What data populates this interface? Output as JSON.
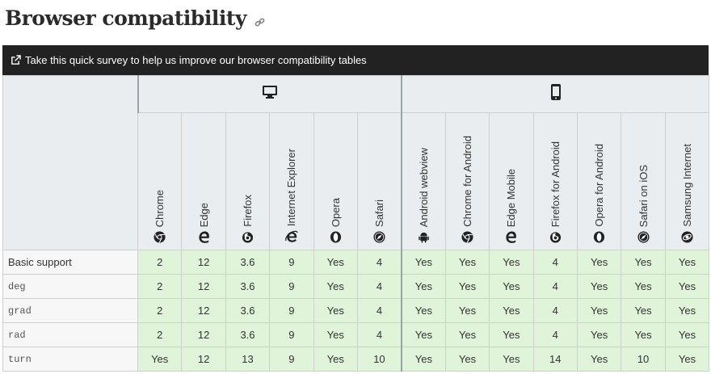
{
  "heading": "Browser compatibility",
  "banner_text": "Take this quick survey to help us improve our browser compatibility tables",
  "platforms": [
    {
      "name": "desktop",
      "icon": "desktop-icon"
    },
    {
      "name": "mobile",
      "icon": "mobile-icon"
    }
  ],
  "browsers": [
    {
      "name": "Chrome",
      "icon": "chrome-icon"
    },
    {
      "name": "Edge",
      "icon": "edge-icon"
    },
    {
      "name": "Firefox",
      "icon": "firefox-icon"
    },
    {
      "name": "Internet Explorer",
      "icon": "ie-icon"
    },
    {
      "name": "Opera",
      "icon": "opera-icon"
    },
    {
      "name": "Safari",
      "icon": "safari-icon"
    },
    {
      "name": "Android webview",
      "icon": "android-icon"
    },
    {
      "name": "Chrome for Android",
      "icon": "chrome-icon"
    },
    {
      "name": "Edge Mobile",
      "icon": "edge-icon"
    },
    {
      "name": "Firefox for Android",
      "icon": "firefox-icon"
    },
    {
      "name": "Opera for Android",
      "icon": "opera-icon"
    },
    {
      "name": "Safari on iOS",
      "icon": "safari-icon"
    },
    {
      "name": "Samsung Internet",
      "icon": "samsung-icon"
    }
  ],
  "rows": [
    {
      "feature": "Basic support",
      "code": false,
      "values": [
        "2",
        "12",
        "3.6",
        "9",
        "Yes",
        "4",
        "Yes",
        "Yes",
        "Yes",
        "4",
        "Yes",
        "Yes",
        "Yes"
      ]
    },
    {
      "feature": "deg",
      "code": true,
      "values": [
        "2",
        "12",
        "3.6",
        "9",
        "Yes",
        "4",
        "Yes",
        "Yes",
        "Yes",
        "4",
        "Yes",
        "Yes",
        "Yes"
      ]
    },
    {
      "feature": "grad",
      "code": true,
      "values": [
        "2",
        "12",
        "3.6",
        "9",
        "Yes",
        "4",
        "Yes",
        "Yes",
        "Yes",
        "4",
        "Yes",
        "Yes",
        "Yes"
      ]
    },
    {
      "feature": "rad",
      "code": true,
      "values": [
        "2",
        "12",
        "3.6",
        "9",
        "Yes",
        "4",
        "Yes",
        "Yes",
        "Yes",
        "4",
        "Yes",
        "Yes",
        "Yes"
      ]
    },
    {
      "feature": "turn",
      "code": true,
      "values": [
        "Yes",
        "12",
        "13",
        "9",
        "Yes",
        "10",
        "Yes",
        "Yes",
        "Yes",
        "14",
        "Yes",
        "10",
        "Yes"
      ]
    }
  ],
  "colors": {
    "supported_bg": "#dff4d9",
    "banner_bg": "#222222",
    "header_bg": "#e9edf0"
  }
}
